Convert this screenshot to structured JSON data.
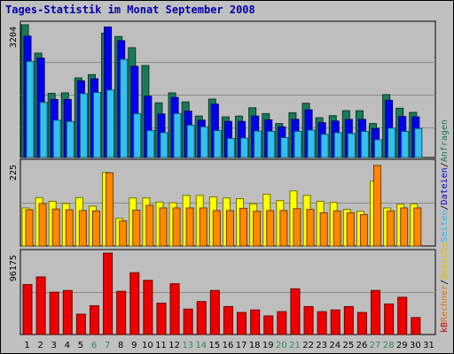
{
  "title": "Tages-Statistik im Monat September 2008",
  "chart_data": {
    "type": "bar",
    "categories": [
      "1",
      "2",
      "3",
      "4",
      "5",
      "6",
      "7",
      "8",
      "9",
      "10",
      "11",
      "12",
      "13",
      "14",
      "15",
      "16",
      "17",
      "18",
      "19",
      "20",
      "21",
      "22",
      "23",
      "24",
      "25",
      "26",
      "27",
      "28",
      "29",
      "30",
      "31"
    ],
    "weekend_days": [
      "6",
      "7",
      "13",
      "14",
      "20",
      "21",
      "27",
      "28"
    ],
    "panels": [
      {
        "name": "top",
        "ymax_label": "3204",
        "ymax": 3204,
        "series": [
          {
            "name": "Anfragen",
            "color": "#1a7a5a",
            "values": [
              3204,
              2520,
              1550,
              1560,
              1920,
              2000,
              3000,
              2920,
              2650,
              2220,
              1320,
              1560,
              1340,
              1000,
              1410,
              980,
              1000,
              1200,
              1060,
              820,
              1080,
              1310,
              960,
              1010,
              1130,
              1130,
              820,
              1520,
              1190,
              1090,
              0
            ]
          },
          {
            "name": "Dateien",
            "color": "#0000ee",
            "values": [
              2930,
              2400,
              1400,
              1400,
              1850,
              1900,
              3150,
              2820,
              2200,
              1480,
              1050,
              1450,
              1120,
              900,
              1290,
              870,
              870,
              1000,
              910,
              740,
              920,
              1150,
              840,
              880,
              920,
              920,
              700,
              1380,
              990,
              980,
              0
            ]
          },
          {
            "name": "Seiten",
            "color": "#33c0ee",
            "values": [
              2320,
              1330,
              900,
              870,
              1540,
              1570,
              1630,
              2370,
              1060,
              650,
              600,
              1060,
              780,
              740,
              650,
              460,
              470,
              640,
              630,
              480,
              630,
              660,
              560,
              600,
              580,
              630,
              430,
              710,
              630,
              700,
              0
            ]
          }
        ]
      },
      {
        "name": "middle",
        "ymax_label": "225",
        "ymax": 225,
        "series": [
          {
            "name": "Besuche",
            "color": "#ffff00",
            "values": [
              103,
              131,
              121,
              115,
              131,
              108,
              199,
              75,
              130,
              130,
              119,
              117,
              137,
              137,
              133,
              130,
              128,
              114,
              140,
              123,
              149,
              137,
              121,
              118,
              99,
              94,
              175,
              103,
              113,
              114,
              0
            ]
          },
          {
            "name": "Rechner",
            "color": "#ff8800",
            "values": [
              98,
              115,
              100,
              98,
              96,
              95,
              198,
              68,
              97,
              110,
              103,
              103,
              103,
              103,
              96,
              96,
              102,
              94,
              96,
              96,
              101,
              99,
              90,
              95,
              90,
              85,
              218,
              95,
              103,
              103,
              0
            ]
          }
        ]
      },
      {
        "name": "bottom",
        "ymax_label": "96175",
        "ymax": 96175,
        "series": [
          {
            "name": "kB",
            "color": "#ee0000",
            "values": [
              59000,
              68000,
              50000,
              52000,
              24000,
              34000,
              96175,
              51000,
              73000,
              64000,
              37000,
              60000,
              30000,
              39000,
              52000,
              33000,
              26000,
              29000,
              22000,
              27000,
              54000,
              33000,
              27000,
              29000,
              33000,
              26000,
              52000,
              36000,
              44000,
              20000,
              0
            ]
          }
        ]
      }
    ],
    "side_labels": [
      {
        "text": "kB",
        "color": "#cc0000"
      },
      {
        "text": "Rechner",
        "color": "#e07000"
      },
      {
        "text": "/",
        "color": "#000000"
      },
      {
        "text": "Besuche",
        "color": "#e0c000"
      },
      {
        "text": "Seiten",
        "color": "#33b8e8"
      },
      {
        "text": "/",
        "color": "#000000"
      },
      {
        "text": "Dateien",
        "color": "#0000cc"
      },
      {
        "text": "/",
        "color": "#000000"
      },
      {
        "text": "Anfragen",
        "color": "#1a7a5a"
      }
    ]
  }
}
